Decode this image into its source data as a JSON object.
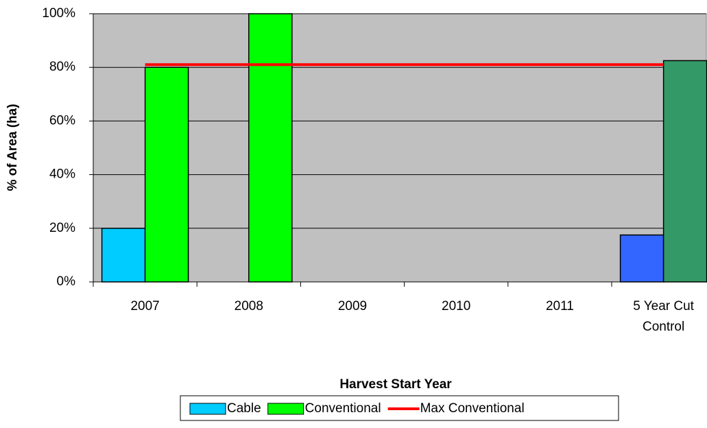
{
  "chart_data": {
    "type": "bar",
    "x_label": "Harvest Start Year",
    "y_label": "% of Area (ha)",
    "categories": [
      "2007",
      "2008",
      "2009",
      "2010",
      "2011",
      "5 Year Cut Control"
    ],
    "series": [
      {
        "name": "Cable",
        "type": "bar",
        "color": "#00ccff",
        "colors": [
          "#00ccff",
          "#00ccff",
          "#00ccff",
          "#00ccff",
          "#00ccff",
          "#3366ff"
        ],
        "values": [
          20,
          null,
          null,
          null,
          null,
          17.5
        ]
      },
      {
        "name": "Conventional",
        "type": "bar",
        "color": "#00ff00",
        "colors": [
          "#00ff00",
          "#00ff00",
          "#00ff00",
          "#00ff00",
          "#00ff00",
          "#339966"
        ],
        "values": [
          80,
          100,
          null,
          null,
          null,
          82.5
        ]
      },
      {
        "name": "Max Conventional",
        "type": "line",
        "color": "#ff0000",
        "values": [
          81,
          81,
          81,
          81,
          81,
          81
        ]
      }
    ],
    "ylim": [
      0,
      100
    ],
    "yticks": [
      {
        "value": 0,
        "label": "0%"
      },
      {
        "value": 20,
        "label": "20%"
      },
      {
        "value": 40,
        "label": "40%"
      },
      {
        "value": 60,
        "label": "60%"
      },
      {
        "value": 80,
        "label": "80%"
      },
      {
        "value": 100,
        "label": "100%"
      }
    ],
    "plot_background": "#c0c0c0",
    "legend": "bottom"
  }
}
